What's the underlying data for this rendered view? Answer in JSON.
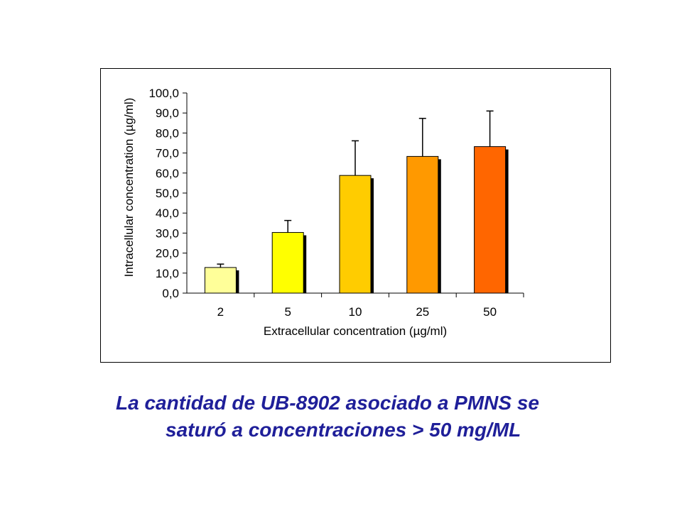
{
  "chart_data": {
    "type": "bar",
    "categories": [
      "2",
      "5",
      "10",
      "25",
      "50"
    ],
    "series": [
      {
        "values": [
          12.8,
          30.3,
          58.8,
          68.3,
          73.2
        ],
        "error_plus": [
          1.7,
          6.0,
          17.3,
          19.0,
          17.8
        ],
        "colors": [
          "#ffff99",
          "#ffff00",
          "#ffcc00",
          "#ff9900",
          "#ff6600"
        ]
      }
    ],
    "xlabel": "Extracellular concentration (µg/ml)",
    "ylabel": "Intracellular concentration (µg/ml)",
    "ylim": [
      0,
      100
    ],
    "yticks": [
      "0,0",
      "10,0",
      "20,0",
      "30,0",
      "40,0",
      "50,0",
      "60,0",
      "70,0",
      "80,0",
      "90,0",
      "100,0"
    ],
    "grid": false,
    "legend": "none"
  },
  "caption": {
    "line1": "La cantidad de UB-8902 asociado a PMNS se",
    "line2": "saturó a concentraciones > 50 mg/ML"
  }
}
